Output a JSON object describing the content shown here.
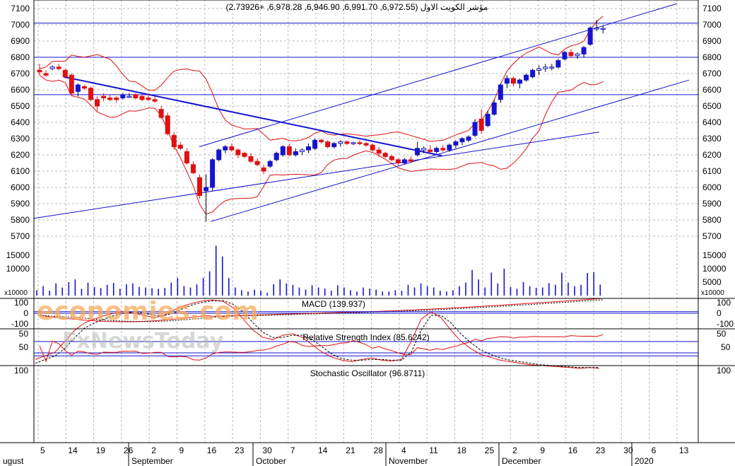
{
  "chart_data": [
    {
      "type": "candlestick",
      "panel": "price",
      "title": "مؤشر الكويت الاول (6,972.55, 6,991.70, 6,946.90, 6,978.28, +2.73926)",
      "ylim": [
        5600,
        7150
      ],
      "yticks": [
        5700,
        5800,
        5900,
        6000,
        6100,
        6200,
        6300,
        6400,
        6500,
        6600,
        6700,
        6800,
        6900,
        7000,
        7100
      ],
      "horizontal_lines": [
        7010,
        6800,
        6570
      ],
      "candles": [
        {
          "o": 6720,
          "h": 6760,
          "l": 6690,
          "c": 6710
        },
        {
          "o": 6700,
          "h": 6720,
          "l": 6680,
          "c": 6690
        },
        {
          "o": 6730,
          "h": 6750,
          "l": 6720,
          "c": 6740
        },
        {
          "o": 6740,
          "h": 6760,
          "l": 6720,
          "c": 6730
        },
        {
          "o": 6720,
          "h": 6730,
          "l": 6670,
          "c": 6680
        },
        {
          "o": 6690,
          "h": 6700,
          "l": 6570,
          "c": 6580
        },
        {
          "o": 6590,
          "h": 6640,
          "l": 6560,
          "c": 6630
        },
        {
          "o": 6620,
          "h": 6630,
          "l": 6600,
          "c": 6610
        },
        {
          "o": 6610,
          "h": 6620,
          "l": 6530,
          "c": 6540
        },
        {
          "o": 6540,
          "h": 6560,
          "l": 6470,
          "c": 6500
        },
        {
          "o": 6560,
          "h": 6580,
          "l": 6530,
          "c": 6550
        },
        {
          "o": 6550,
          "h": 6570,
          "l": 6530,
          "c": 6540
        },
        {
          "o": 6550,
          "h": 6560,
          "l": 6520,
          "c": 6540
        },
        {
          "o": 6550,
          "h": 6580,
          "l": 6540,
          "c": 6570
        },
        {
          "o": 6560,
          "h": 6580,
          "l": 6550,
          "c": 6560
        },
        {
          "o": 6570,
          "h": 6580,
          "l": 6540,
          "c": 6550
        },
        {
          "o": 6560,
          "h": 6570,
          "l": 6530,
          "c": 6540
        },
        {
          "o": 6550,
          "h": 6570,
          "l": 6530,
          "c": 6540
        },
        {
          "o": 6540,
          "h": 6560,
          "l": 6520,
          "c": 6530
        },
        {
          "o": 6480,
          "h": 6500,
          "l": 6420,
          "c": 6430
        },
        {
          "o": 6440,
          "h": 6460,
          "l": 6320,
          "c": 6330
        },
        {
          "o": 6320,
          "h": 6340,
          "l": 6230,
          "c": 6250
        },
        {
          "o": 6260,
          "h": 6280,
          "l": 6230,
          "c": 6240
        },
        {
          "o": 6220,
          "h": 6240,
          "l": 6140,
          "c": 6150
        },
        {
          "o": 6140,
          "h": 6160,
          "l": 6080,
          "c": 6090
        },
        {
          "o": 6060,
          "h": 6080,
          "l": 5930,
          "c": 5950
        },
        {
          "o": 5980,
          "h": 6080,
          "l": 5790,
          "c": 6000
        },
        {
          "o": 6000,
          "h": 6180,
          "l": 5980,
          "c": 6170
        },
        {
          "o": 6170,
          "h": 6240,
          "l": 6160,
          "c": 6230
        },
        {
          "o": 6230,
          "h": 6260,
          "l": 6210,
          "c": 6250
        },
        {
          "o": 6250,
          "h": 6270,
          "l": 6220,
          "c": 6230
        },
        {
          "o": 6230,
          "h": 6240,
          "l": 6180,
          "c": 6200
        },
        {
          "o": 6210,
          "h": 6220,
          "l": 6180,
          "c": 6190
        },
        {
          "o": 6190,
          "h": 6210,
          "l": 6150,
          "c": 6160
        },
        {
          "o": 6160,
          "h": 6180,
          "l": 6130,
          "c": 6140
        },
        {
          "o": 6120,
          "h": 6140,
          "l": 6080,
          "c": 6100
        },
        {
          "o": 6130,
          "h": 6170,
          "l": 6120,
          "c": 6160
        },
        {
          "o": 6170,
          "h": 6220,
          "l": 6160,
          "c": 6210
        },
        {
          "o": 6200,
          "h": 6260,
          "l": 6190,
          "c": 6250
        },
        {
          "o": 6250,
          "h": 6270,
          "l": 6190,
          "c": 6200
        },
        {
          "o": 6200,
          "h": 6240,
          "l": 6190,
          "c": 6220
        },
        {
          "o": 6220,
          "h": 6240,
          "l": 6200,
          "c": 6230
        },
        {
          "o": 6230,
          "h": 6270,
          "l": 6210,
          "c": 6250
        },
        {
          "o": 6240,
          "h": 6300,
          "l": 6230,
          "c": 6290
        },
        {
          "o": 6290,
          "h": 6300,
          "l": 6270,
          "c": 6280
        },
        {
          "o": 6280,
          "h": 6290,
          "l": 6240,
          "c": 6250
        },
        {
          "o": 6250,
          "h": 6280,
          "l": 6240,
          "c": 6270
        },
        {
          "o": 6270,
          "h": 6290,
          "l": 6250,
          "c": 6280
        },
        {
          "o": 6280,
          "h": 6290,
          "l": 6260,
          "c": 6270
        },
        {
          "o": 6270,
          "h": 6280,
          "l": 6260,
          "c": 6275
        },
        {
          "o": 6275,
          "h": 6290,
          "l": 6260,
          "c": 6270
        },
        {
          "o": 6270,
          "h": 6280,
          "l": 6250,
          "c": 6260
        },
        {
          "o": 6260,
          "h": 6270,
          "l": 6220,
          "c": 6230
        },
        {
          "o": 6230,
          "h": 6250,
          "l": 6190,
          "c": 6210
        },
        {
          "o": 6210,
          "h": 6220,
          "l": 6180,
          "c": 6190
        },
        {
          "o": 6190,
          "h": 6200,
          "l": 6160,
          "c": 6170
        },
        {
          "o": 6170,
          "h": 6180,
          "l": 6130,
          "c": 6150
        },
        {
          "o": 6150,
          "h": 6180,
          "l": 6140,
          "c": 6170
        },
        {
          "o": 6170,
          "h": 6190,
          "l": 6150,
          "c": 6160
        },
        {
          "o": 6200,
          "h": 6280,
          "l": 6190,
          "c": 6240
        },
        {
          "o": 6230,
          "h": 6250,
          "l": 6210,
          "c": 6240
        },
        {
          "o": 6230,
          "h": 6260,
          "l": 6210,
          "c": 6220
        },
        {
          "o": 6220,
          "h": 6250,
          "l": 6210,
          "c": 6240
        },
        {
          "o": 6240,
          "h": 6260,
          "l": 6220,
          "c": 6230
        },
        {
          "o": 6230,
          "h": 6270,
          "l": 6220,
          "c": 6260
        },
        {
          "o": 6260,
          "h": 6290,
          "l": 6240,
          "c": 6280
        },
        {
          "o": 6280,
          "h": 6310,
          "l": 6260,
          "c": 6300
        },
        {
          "o": 6290,
          "h": 6320,
          "l": 6280,
          "c": 6310
        },
        {
          "o": 6320,
          "h": 6420,
          "l": 6310,
          "c": 6400
        },
        {
          "o": 6420,
          "h": 6480,
          "l": 6330,
          "c": 6350
        },
        {
          "o": 6380,
          "h": 6470,
          "l": 6370,
          "c": 6450
        },
        {
          "o": 6450,
          "h": 6540,
          "l": 6440,
          "c": 6520
        },
        {
          "o": 6540,
          "h": 6640,
          "l": 6520,
          "c": 6630
        },
        {
          "o": 6640,
          "h": 6690,
          "l": 6610,
          "c": 6670
        },
        {
          "o": 6670,
          "h": 6680,
          "l": 6620,
          "c": 6640
        },
        {
          "o": 6640,
          "h": 6670,
          "l": 6610,
          "c": 6660
        },
        {
          "o": 6660,
          "h": 6700,
          "l": 6650,
          "c": 6690
        },
        {
          "o": 6680,
          "h": 6730,
          "l": 6670,
          "c": 6720
        },
        {
          "o": 6720,
          "h": 6750,
          "l": 6690,
          "c": 6730
        },
        {
          "o": 6730,
          "h": 6760,
          "l": 6710,
          "c": 6740
        },
        {
          "o": 6740,
          "h": 6760,
          "l": 6720,
          "c": 6740
        },
        {
          "o": 6740,
          "h": 6790,
          "l": 6730,
          "c": 6780
        },
        {
          "o": 6790,
          "h": 6840,
          "l": 6780,
          "c": 6830
        },
        {
          "o": 6830,
          "h": 6850,
          "l": 6800,
          "c": 6810
        },
        {
          "o": 6810,
          "h": 6830,
          "l": 6790,
          "c": 6820
        },
        {
          "o": 6820,
          "h": 6870,
          "l": 6800,
          "c": 6860
        },
        {
          "o": 6880,
          "h": 6990,
          "l": 6870,
          "c": 6980
        },
        {
          "o": 6980,
          "h": 7030,
          "l": 6960,
          "c": 6980
        },
        {
          "o": 6972.55,
          "h": 6991.7,
          "l": 6946.9,
          "c": 6978.28
        }
      ]
    },
    {
      "type": "bar",
      "panel": "volume",
      "unit_label": "x10000",
      "yticks": [
        5000,
        10000,
        15000
      ],
      "values": [
        2000,
        3500,
        1800,
        4500,
        3000,
        5000,
        6000,
        2500,
        4800,
        3200,
        2800,
        4000,
        4700,
        2500,
        4200,
        4500,
        3200,
        3000,
        2800,
        2500,
        2800,
        4800,
        6500,
        3500,
        3000,
        4200,
        6600,
        9000,
        18500,
        14500,
        6500,
        3000,
        2000,
        1500,
        2200,
        1800,
        1000,
        4200,
        6000,
        4500,
        4000,
        3000,
        2200,
        3800,
        3000,
        2600,
        1800,
        3800,
        3000,
        2000,
        1500,
        3000,
        2600,
        2200,
        1500,
        1500,
        2000,
        1800,
        4000,
        3000,
        4500,
        3500,
        3000,
        1800,
        1500,
        2000,
        3500,
        4800,
        9500,
        6000,
        3000,
        8500,
        4500,
        10000,
        3200,
        2500,
        5000,
        3500,
        2900,
        3000,
        4600,
        4000,
        8500,
        4800,
        3500,
        4000,
        8400,
        8700,
        4100
      ],
      "xlabels": [
        "5",
        "14",
        "19",
        "26",
        "2",
        "9",
        "16",
        "23",
        "30",
        "7",
        "14",
        "21",
        "28",
        "4",
        "11",
        "18",
        "25",
        "2",
        "9",
        "16",
        "23",
        "30",
        "6",
        "13"
      ],
      "months": [
        "ugust",
        "September",
        "October",
        "November",
        "December",
        "2020"
      ]
    },
    {
      "type": "line",
      "panel": "macd",
      "title": "MACD (139.937)",
      "yticks": [
        100,
        0,
        -100
      ]
    },
    {
      "type": "line",
      "panel": "rsi",
      "title": "Relative Strength Index (85.6242)",
      "yticks": [
        50
      ]
    },
    {
      "type": "line",
      "panel": "stochastic",
      "title": "Stochastic Oscillator (96.8711)",
      "yticks": [
        100,
        50
      ],
      "series": [
        {
          "values": [
            85,
            80,
            75,
            60,
            45,
            35,
            30,
            25,
            22,
            20,
            22,
            25,
            28,
            25,
            18,
            12,
            8,
            5,
            4,
            6,
            15,
            30,
            45,
            55,
            58,
            52,
            50,
            55,
            65,
            75,
            82,
            86,
            88,
            85,
            83,
            86,
            87,
            85,
            60,
            30,
            20,
            28,
            45,
            60,
            70,
            78,
            82,
            86,
            88,
            90,
            92,
            93,
            94,
            95,
            96,
            97,
            96,
            97
          ]
        },
        {
          "values": [
            90,
            85,
            80,
            70,
            55,
            42,
            35,
            30,
            25,
            22,
            20,
            22,
            25,
            25,
            22,
            15,
            10,
            7,
            5,
            5,
            10,
            20,
            35,
            48,
            55,
            55,
            52,
            52,
            58,
            68,
            78,
            84,
            86,
            86,
            85,
            85,
            86,
            86,
            75,
            45,
            25,
            25,
            35,
            50,
            62,
            72,
            78,
            83,
            86,
            88,
            90,
            92,
            93,
            94,
            95,
            96,
            96,
            96
          ]
        }
      ]
    }
  ],
  "watermark": {
    "line1": "economies.com",
    "line2": "FxNewsToday"
  },
  "colors": {
    "up": "#1414d0",
    "down": "#e01010",
    "band": "#e01010",
    "trend": "#1414d0",
    "grid": "#b8b8b8",
    "watermark": "#f6a95c"
  }
}
